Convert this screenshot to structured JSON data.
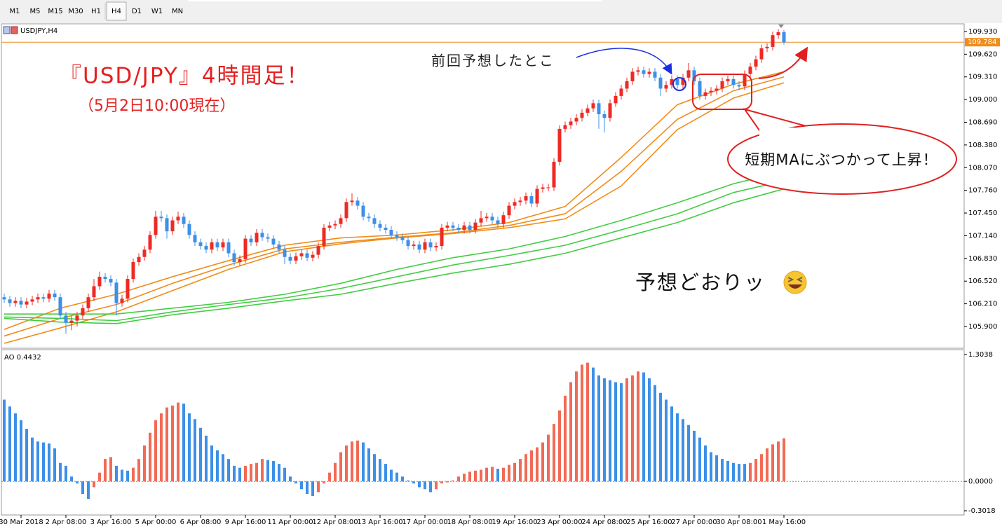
{
  "toolbar": {
    "timeframes": [
      "M1",
      "M5",
      "M15",
      "M30",
      "H1",
      "H4",
      "D1",
      "W1",
      "MN"
    ],
    "active": "H4"
  },
  "chart_data": [
    {
      "type": "candlestick",
      "symbol": "USDJPY,H4",
      "title": "『USD/JPY』4時間足！",
      "subtitle": "（5月2日10:00現在）",
      "annotations": [
        "前回予想したとこ",
        "短期MAにぶつかって上昇！",
        "予想どおりッ"
      ],
      "up_color": "#ee2a24",
      "down_color": "#3d8fe8",
      "open": [
        106.3,
        106.27,
        106.22,
        106.25,
        106.2,
        106.24,
        106.27,
        106.3,
        106.28,
        106.35,
        106.3,
        106.05,
        105.95,
        105.98,
        106.05,
        106.15,
        106.3,
        106.45,
        106.58,
        106.55,
        106.5,
        106.22,
        106.28,
        106.55,
        106.78,
        106.85,
        106.95,
        107.15,
        107.4,
        107.38,
        107.2,
        107.35,
        107.4,
        107.3,
        107.15,
        107.05,
        107.0,
        106.95,
        107.05,
        106.98,
        107.05,
        106.9,
        106.78,
        106.82,
        107.1,
        107.05,
        107.18,
        107.12,
        107.1,
        107.02,
        106.95,
        106.85,
        106.8,
        106.86,
        106.9,
        106.84,
        106.88,
        107.0,
        107.25,
        107.28,
        107.3,
        107.38,
        107.6,
        107.62,
        107.55,
        107.4,
        107.38,
        107.3,
        107.25,
        107.22,
        107.15,
        107.12,
        107.08,
        107.0,
        107.02,
        106.95,
        107.05,
        106.98,
        107.0,
        107.25,
        107.28,
        107.25,
        107.22,
        107.28,
        107.22,
        107.32,
        107.38,
        107.4,
        107.35,
        107.3,
        107.42,
        107.55,
        107.6,
        107.62,
        107.68,
        107.58,
        107.78,
        107.8,
        107.8,
        108.15,
        108.6,
        108.65,
        108.7,
        108.75,
        108.82,
        108.88,
        108.95,
        108.8,
        108.75,
        108.95,
        109.05,
        109.15,
        109.25,
        109.38,
        109.4,
        109.35,
        109.38,
        109.3,
        109.15,
        109.2,
        109.28,
        109.2,
        109.3,
        109.4,
        109.25,
        109.05,
        109.1,
        109.12,
        109.15,
        109.25,
        109.28,
        109.2,
        109.18,
        109.35,
        109.45,
        109.55,
        109.7,
        109.72,
        109.88,
        109.92
      ],
      "high": [
        106.35,
        106.32,
        106.3,
        106.3,
        106.29,
        106.32,
        106.35,
        106.35,
        106.4,
        106.4,
        106.35,
        106.1,
        106.05,
        106.1,
        106.2,
        106.35,
        106.55,
        106.65,
        106.63,
        106.6,
        106.55,
        106.33,
        106.6,
        106.83,
        106.9,
        107.0,
        107.2,
        107.48,
        107.48,
        107.43,
        107.4,
        107.47,
        107.45,
        107.35,
        107.2,
        107.1,
        107.05,
        107.1,
        107.1,
        107.1,
        107.1,
        106.95,
        106.87,
        107.15,
        107.15,
        107.23,
        107.23,
        107.17,
        107.15,
        107.07,
        107.0,
        106.9,
        106.91,
        106.95,
        106.95,
        106.93,
        107.05,
        107.3,
        107.33,
        107.35,
        107.43,
        107.65,
        107.72,
        107.67,
        107.6,
        107.45,
        107.43,
        107.35,
        107.3,
        107.27,
        107.2,
        107.17,
        107.13,
        107.07,
        107.07,
        107.1,
        107.1,
        107.05,
        107.3,
        107.33,
        107.33,
        107.3,
        107.33,
        107.33,
        107.37,
        107.48,
        107.45,
        107.45,
        107.4,
        107.47,
        107.6,
        107.65,
        107.67,
        107.73,
        107.73,
        107.83,
        107.85,
        107.85,
        108.2,
        108.65,
        108.7,
        108.75,
        108.8,
        108.87,
        108.93,
        109.0,
        109.0,
        108.85,
        109.0,
        109.1,
        109.2,
        109.3,
        109.43,
        109.45,
        109.45,
        109.43,
        109.43,
        109.35,
        109.25,
        109.33,
        109.33,
        109.35,
        109.5,
        109.45,
        109.3,
        109.15,
        109.17,
        109.2,
        109.3,
        109.33,
        109.33,
        109.25,
        109.4,
        109.5,
        109.6,
        109.75,
        109.77,
        109.93,
        109.96,
        109.95
      ],
      "low": [
        106.22,
        106.17,
        106.17,
        106.15,
        106.15,
        106.19,
        106.22,
        106.23,
        106.23,
        106.25,
        106.0,
        105.8,
        105.85,
        105.9,
        106.0,
        106.1,
        106.25,
        106.4,
        106.5,
        106.45,
        106.05,
        106.17,
        106.23,
        106.5,
        106.73,
        106.8,
        106.9,
        107.1,
        107.33,
        107.1,
        107.15,
        107.3,
        107.25,
        107.1,
        107.0,
        106.95,
        106.9,
        106.9,
        106.93,
        106.93,
        106.85,
        106.73,
        106.73,
        106.77,
        107.0,
        107.0,
        107.07,
        107.05,
        106.97,
        106.9,
        106.75,
        106.75,
        106.75,
        106.81,
        106.79,
        106.79,
        106.83,
        106.95,
        107.2,
        107.23,
        107.25,
        107.33,
        107.55,
        107.5,
        107.35,
        107.33,
        107.25,
        107.2,
        107.17,
        107.1,
        107.07,
        107.03,
        106.95,
        106.95,
        106.9,
        106.9,
        106.93,
        106.93,
        106.95,
        107.2,
        107.2,
        107.17,
        107.17,
        107.17,
        107.17,
        107.27,
        107.33,
        107.3,
        107.25,
        107.25,
        107.37,
        107.5,
        107.55,
        107.57,
        107.53,
        107.53,
        107.73,
        107.75,
        107.75,
        108.1,
        108.55,
        108.6,
        108.65,
        108.7,
        108.77,
        108.83,
        108.6,
        108.55,
        108.7,
        108.9,
        109.0,
        109.1,
        109.2,
        109.33,
        109.3,
        109.3,
        109.25,
        109.05,
        109.1,
        109.15,
        109.15,
        109.15,
        109.25,
        109.2,
        109.0,
        109.0,
        109.05,
        109.07,
        109.1,
        109.2,
        109.15,
        109.13,
        109.13,
        109.3,
        109.4,
        109.5,
        109.65,
        109.67,
        109.83,
        109.75
      ],
      "close": [
        106.27,
        106.22,
        106.25,
        106.2,
        106.24,
        106.27,
        106.3,
        106.28,
        106.35,
        106.3,
        106.05,
        105.95,
        105.98,
        106.05,
        106.15,
        106.3,
        106.45,
        106.58,
        106.55,
        106.5,
        106.22,
        106.28,
        106.55,
        106.78,
        106.85,
        106.95,
        107.15,
        107.4,
        107.38,
        107.2,
        107.35,
        107.4,
        107.3,
        107.15,
        107.05,
        107.0,
        106.95,
        107.05,
        106.98,
        107.05,
        106.9,
        106.78,
        106.82,
        107.1,
        107.05,
        107.18,
        107.12,
        107.1,
        107.02,
        106.95,
        106.85,
        106.8,
        106.86,
        106.9,
        106.84,
        106.88,
        107.0,
        107.25,
        107.28,
        107.3,
        107.38,
        107.6,
        107.62,
        107.55,
        107.4,
        107.38,
        107.3,
        107.25,
        107.22,
        107.15,
        107.12,
        107.08,
        107.0,
        107.02,
        106.95,
        107.05,
        106.98,
        107.0,
        107.25,
        107.28,
        107.25,
        107.22,
        107.28,
        107.22,
        107.32,
        107.38,
        107.4,
        107.35,
        107.3,
        107.42,
        107.55,
        107.6,
        107.62,
        107.68,
        107.58,
        107.78,
        107.8,
        107.8,
        108.15,
        108.6,
        108.65,
        108.7,
        108.75,
        108.82,
        108.88,
        108.95,
        108.8,
        108.75,
        108.95,
        109.05,
        109.15,
        109.25,
        109.38,
        109.4,
        109.35,
        109.38,
        109.3,
        109.15,
        109.2,
        109.28,
        109.2,
        109.3,
        109.4,
        109.25,
        109.05,
        109.1,
        109.12,
        109.15,
        109.25,
        109.28,
        109.2,
        109.18,
        109.35,
        109.45,
        109.55,
        109.7,
        109.72,
        109.88,
        109.92,
        109.78
      ],
      "ma_x": [
        0,
        10,
        20,
        30,
        40,
        50,
        60,
        70,
        80,
        90,
        100,
        110,
        120,
        130,
        139
      ],
      "series": [
        {
          "color": "#ef8c1a",
          "values": [
            105.86,
            106.15,
            106.34,
            106.58,
            106.8,
            107.01,
            107.11,
            107.15,
            107.22,
            107.32,
            107.54,
            108.21,
            108.93,
            109.21,
            109.38
          ]
        },
        {
          "color": "#ef8c1a",
          "values": [
            105.77,
            106.01,
            106.2,
            106.49,
            106.74,
            106.96,
            107.05,
            107.12,
            107.18,
            107.28,
            107.44,
            108.02,
            108.73,
            109.12,
            109.31
          ]
        },
        {
          "color": "#ef8c1a",
          "values": [
            105.67,
            105.88,
            106.1,
            106.39,
            106.68,
            106.92,
            107.03,
            107.11,
            107.17,
            107.25,
            107.37,
            107.82,
            108.59,
            109.02,
            109.23
          ]
        },
        {
          "color": "#44cc44",
          "values": [
            106.07,
            106.07,
            106.07,
            106.15,
            106.23,
            106.34,
            106.49,
            106.68,
            106.84,
            106.96,
            107.13,
            107.35,
            107.59,
            107.85,
            108.02
          ]
        },
        {
          "color": "#44cc44",
          "values": [
            106.03,
            106.01,
            105.98,
            106.1,
            106.2,
            106.29,
            106.42,
            106.58,
            106.74,
            106.87,
            107.01,
            107.22,
            107.44,
            107.73,
            107.89
          ]
        },
        {
          "color": "#44cc44",
          "values": [
            106.01,
            105.96,
            105.94,
            106.06,
            106.15,
            106.25,
            106.34,
            106.49,
            106.63,
            106.75,
            106.9,
            107.11,
            107.32,
            107.59,
            107.78
          ]
        }
      ],
      "current_price": {
        "value": 109.784,
        "color": "#f08c1c"
      },
      "ylim": [
        105.603,
        110.035
      ],
      "yticks": [
        {
          "value": 109.93,
          "label": "109.930"
        },
        {
          "value": 109.62,
          "label": "109.620"
        },
        {
          "value": 109.31,
          "label": "109.310"
        },
        {
          "value": 109.0,
          "label": "109.000"
        },
        {
          "value": 108.69,
          "label": "108.690"
        },
        {
          "value": 108.38,
          "label": "108.380"
        },
        {
          "value": 108.07,
          "label": "108.070"
        },
        {
          "value": 107.76,
          "label": "107.760"
        },
        {
          "value": 107.45,
          "label": "107.450"
        },
        {
          "value": 107.14,
          "label": "107.140"
        },
        {
          "value": 106.83,
          "label": "106.830"
        },
        {
          "value": 106.52,
          "label": "106.520"
        },
        {
          "value": 106.21,
          "label": "106.210"
        },
        {
          "value": 105.9,
          "label": "105.900"
        }
      ]
    },
    {
      "type": "bar",
      "title": "AO 0.4432",
      "up_color": "#f26a55",
      "down_color": "#3d8fe8",
      "categories": [
        null,
        null,
        null,
        "30 Mar 2018",
        null,
        null,
        null,
        null,
        null,
        null,
        null,
        "2 Apr 08:00",
        null,
        null,
        null,
        null,
        null,
        null,
        null,
        "3 Apr 16:00",
        null,
        null,
        null,
        null,
        null,
        null,
        null,
        "5 Apr 00:00",
        null,
        null,
        null,
        null,
        null,
        null,
        null,
        "6 Apr 08:00",
        null,
        null,
        null,
        null,
        null,
        null,
        null,
        "9 Apr 16:00",
        null,
        null,
        null,
        null,
        null,
        null,
        null,
        "11 Apr 00:00",
        null,
        null,
        null,
        null,
        null,
        null,
        null,
        "12 Apr 08:00",
        null,
        null,
        null,
        null,
        null,
        null,
        null,
        "13 Apr 16:00",
        null,
        null,
        null,
        null,
        null,
        null,
        null,
        "17 Apr 00:00",
        null,
        null,
        null,
        null,
        null,
        null,
        null,
        "18 Apr 08:00",
        null,
        null,
        null,
        null,
        null,
        null,
        null,
        "19 Apr 16:00",
        null,
        null,
        null,
        null,
        null,
        null,
        null,
        "23 Apr 00:00",
        null,
        null,
        null,
        null,
        null,
        null,
        null,
        "24 Apr 08:00",
        null,
        null,
        null,
        null,
        null,
        null,
        null,
        "25 Apr 16:00",
        null,
        null,
        null,
        null,
        null,
        null,
        null,
        "27 Apr 00:00",
        null,
        null,
        null,
        null,
        null,
        null,
        null,
        "30 Apr 08:00",
        null,
        null,
        null,
        null,
        null,
        null,
        null,
        "1 May 16:00"
      ],
      "values": [
        0.84,
        0.77,
        0.7,
        0.63,
        0.54,
        0.45,
        0.41,
        0.4,
        0.39,
        0.34,
        0.19,
        0.16,
        0.05,
        -0.02,
        -0.13,
        -0.18,
        -0.06,
        0.09,
        0.23,
        0.25,
        0.16,
        0.12,
        0.11,
        0.14,
        0.23,
        0.37,
        0.5,
        0.63,
        0.7,
        0.76,
        0.78,
        0.81,
        0.8,
        0.7,
        0.64,
        0.55,
        0.47,
        0.37,
        0.32,
        0.28,
        0.23,
        0.16,
        0.14,
        0.16,
        0.18,
        0.19,
        0.23,
        0.22,
        0.21,
        0.18,
        0.14,
        0.05,
        -0.02,
        -0.08,
        -0.13,
        -0.15,
        -0.11,
        -0.02,
        0.09,
        0.19,
        0.3,
        0.37,
        0.41,
        0.42,
        0.4,
        0.34,
        0.28,
        0.23,
        0.18,
        0.12,
        0.09,
        0.05,
        0.01,
        -0.02,
        -0.06,
        -0.08,
        -0.11,
        -0.08,
        -0.02,
        -0.01,
        0.01,
        0.05,
        0.08,
        0.1,
        0.11,
        0.12,
        0.14,
        0.15,
        0.13,
        0.14,
        0.17,
        0.19,
        0.23,
        0.28,
        0.32,
        0.35,
        0.4,
        0.48,
        0.59,
        0.73,
        0.88,
        1.02,
        1.13,
        1.2,
        1.22,
        1.17,
        1.09,
        1.06,
        1.04,
        1.02,
        1.01,
        1.06,
        1.09,
        1.13,
        1.12,
        1.06,
        0.99,
        0.91,
        0.84,
        0.77,
        0.7,
        0.64,
        0.58,
        0.52,
        0.45,
        0.37,
        0.3,
        0.27,
        0.23,
        0.21,
        0.19,
        0.18,
        0.18,
        0.19,
        0.23,
        0.28,
        0.34,
        0.38,
        0.41,
        0.4432
      ],
      "ylim": [
        -0.345,
        1.347
      ],
      "yticks": [
        1.3038,
        {
          "value": 0,
          "label": "0.0000"
        },
        -0.3018
      ]
    }
  ]
}
